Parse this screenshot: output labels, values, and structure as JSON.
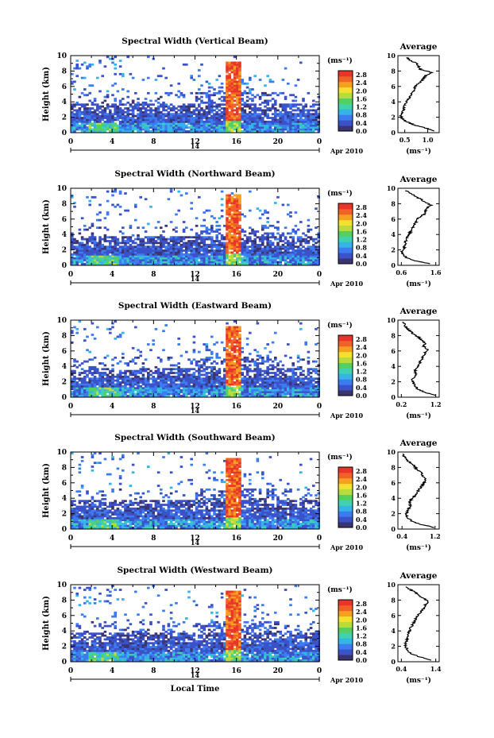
{
  "chart_data": [
    {
      "type": "heatmap",
      "title": "Spectral Width (Vertical Beam)",
      "ylabel": "Height (km)",
      "yticks": [
        "0",
        "2",
        "4",
        "6",
        "8",
        "10"
      ],
      "xticks": [
        "0",
        "4",
        "8",
        "12",
        "16",
        "20",
        "0"
      ],
      "date_tick": "14",
      "date_label": "Apr 2010",
      "ylim": [
        0,
        10
      ],
      "xlim": [
        0,
        24
      ],
      "colorbar": {
        "unit": "(ms⁻¹)",
        "ticks": [
          "0.0",
          "0.4",
          "0.8",
          "1.2",
          "1.6",
          "2.0",
          "2.4",
          "2.8"
        ],
        "range": [
          0,
          3.0
        ]
      },
      "profile": {
        "title": "Average",
        "xlabel": "(ms⁻¹)",
        "xticks": [
          "0.5",
          "1.0"
        ],
        "xlim": [
          0.35,
          1.25
        ],
        "heights": [
          0.2,
          0.6,
          1.0,
          1.4,
          1.8,
          2.2,
          2.6,
          3.0,
          3.4,
          3.8,
          4.2,
          4.6,
          5.0,
          5.4,
          5.8,
          6.2,
          6.6,
          7.0,
          7.4,
          7.8,
          8.2,
          8.6,
          9.0,
          9.4,
          9.8
        ],
        "values": [
          1.15,
          0.95,
          0.7,
          0.55,
          0.45,
          0.42,
          0.45,
          0.48,
          0.47,
          0.52,
          0.55,
          0.62,
          0.65,
          0.7,
          0.72,
          0.75,
          0.85,
          0.9,
          0.95,
          1.1,
          0.85,
          0.8,
          0.75,
          0.6,
          0.55
        ]
      }
    },
    {
      "type": "heatmap",
      "title": "Spectral Width (Northward Beam)",
      "ylabel": "Height (km)",
      "yticks": [
        "0",
        "2",
        "4",
        "6",
        "8",
        "10"
      ],
      "xticks": [
        "0",
        "4",
        "8",
        "12",
        "16",
        "20",
        "0"
      ],
      "date_tick": "14",
      "date_label": "Apr 2010",
      "ylim": [
        0,
        10
      ],
      "xlim": [
        0,
        24
      ],
      "colorbar": {
        "unit": "(ms⁻¹)",
        "ticks": [
          "0.0",
          "0.4",
          "0.8",
          "1.2",
          "1.6",
          "2.0",
          "2.4",
          "2.8"
        ],
        "range": [
          0,
          3.0
        ]
      },
      "profile": {
        "title": "Average",
        "xlabel": "(ms⁻¹)",
        "xticks": [
          "0.6",
          "1.6"
        ],
        "xlim": [
          0.5,
          1.7
        ],
        "heights": [
          0.2,
          0.6,
          1.0,
          1.4,
          1.8,
          2.2,
          2.6,
          3.0,
          3.4,
          3.8,
          4.2,
          4.6,
          5.0,
          5.4,
          5.8,
          6.2,
          6.6,
          7.0,
          7.4,
          7.8,
          8.2,
          8.6,
          9.0,
          9.4,
          9.8
        ],
        "values": [
          1.45,
          1.0,
          0.75,
          0.65,
          0.62,
          0.68,
          0.7,
          0.72,
          0.75,
          0.8,
          0.85,
          0.9,
          0.95,
          1.0,
          1.05,
          1.1,
          1.25,
          1.3,
          1.35,
          1.45,
          1.3,
          1.15,
          1.0,
          0.85,
          0.7
        ]
      }
    },
    {
      "type": "heatmap",
      "title": "Spectral Width (Eastward Beam)",
      "ylabel": "Height (km)",
      "yticks": [
        "0",
        "2",
        "4",
        "6",
        "8",
        "10"
      ],
      "xticks": [
        "0",
        "4",
        "8",
        "12",
        "16",
        "20",
        "0"
      ],
      "date_tick": "14",
      "date_label": "Apr 2010",
      "ylim": [
        0,
        10
      ],
      "xlim": [
        0,
        24
      ],
      "colorbar": {
        "unit": "(ms⁻¹)",
        "ticks": [
          "0.0",
          "0.4",
          "0.8",
          "1.2",
          "1.6",
          "2.0",
          "2.4",
          "2.8"
        ],
        "range": [
          0,
          3.0
        ]
      },
      "profile": {
        "title": "Average",
        "xlabel": "(ms⁻¹)",
        "xticks": [
          "0.2",
          "1.2"
        ],
        "xlim": [
          0.1,
          1.3
        ],
        "heights": [
          0.2,
          0.6,
          1.0,
          1.4,
          1.8,
          2.2,
          2.6,
          3.0,
          3.4,
          3.8,
          4.2,
          4.6,
          5.0,
          5.4,
          5.8,
          6.2,
          6.6,
          7.0,
          7.4,
          7.8,
          8.2,
          8.6,
          9.0,
          9.4,
          9.8
        ],
        "values": [
          1.2,
          0.9,
          0.7,
          0.6,
          0.55,
          0.5,
          0.58,
          0.62,
          0.6,
          0.65,
          0.7,
          0.75,
          0.8,
          0.85,
          0.9,
          0.95,
          0.85,
          0.9,
          0.8,
          0.7,
          0.55,
          0.45,
          0.35,
          0.3,
          0.25
        ]
      }
    },
    {
      "type": "heatmap",
      "title": "Spectral Width (Southward Beam)",
      "ylabel": "Height (km)",
      "yticks": [
        "0",
        "2",
        "4",
        "6",
        "8",
        "10"
      ],
      "xticks": [
        "0",
        "4",
        "8",
        "12",
        "16",
        "20",
        "0"
      ],
      "date_tick": "14",
      "date_label": "Apr 2010",
      "ylim": [
        0,
        10
      ],
      "xlim": [
        0,
        24
      ],
      "colorbar": {
        "unit": "(ms⁻¹)",
        "ticks": [
          "0.0",
          "0.4",
          "0.8",
          "1.2",
          "1.6",
          "2.0",
          "2.4",
          "2.8"
        ],
        "range": [
          0,
          3.0
        ]
      },
      "profile": {
        "title": "Average",
        "xlabel": "(ms⁻¹)",
        "xticks": [
          "0.4",
          "1.2"
        ],
        "xlim": [
          0.3,
          1.3
        ],
        "heights": [
          0.2,
          0.6,
          1.0,
          1.4,
          1.8,
          2.2,
          2.6,
          3.0,
          3.4,
          3.8,
          4.2,
          4.6,
          5.0,
          5.4,
          5.8,
          6.2,
          6.6,
          7.0,
          7.4,
          7.8,
          8.2,
          8.6,
          9.0,
          9.4,
          9.8
        ],
        "values": [
          1.2,
          0.85,
          0.65,
          0.55,
          0.5,
          0.52,
          0.55,
          0.6,
          0.58,
          0.62,
          0.7,
          0.75,
          0.8,
          0.85,
          0.9,
          0.95,
          0.95,
          0.9,
          0.85,
          0.75,
          0.7,
          0.6,
          0.5,
          0.45,
          0.4
        ]
      }
    },
    {
      "type": "heatmap",
      "title": "Spectral Width (Westward Beam)",
      "ylabel": "Height (km)",
      "xlabel": "Local Time",
      "yticks": [
        "0",
        "2",
        "4",
        "6",
        "8",
        "10"
      ],
      "xticks": [
        "0",
        "4",
        "8",
        "12",
        "16",
        "20",
        "0"
      ],
      "date_tick": "14",
      "date_label": "Apr 2010",
      "ylim": [
        0,
        10
      ],
      "xlim": [
        0,
        24
      ],
      "colorbar": {
        "unit": "(ms⁻¹)",
        "ticks": [
          "0.0",
          "0.4",
          "0.8",
          "1.2",
          "1.6",
          "2.0",
          "2.4",
          "2.8"
        ],
        "range": [
          0,
          3.0
        ]
      },
      "profile": {
        "title": "Average",
        "xlabel": "(ms⁻¹)",
        "xticks": [
          "0.4",
          "1.4"
        ],
        "xlim": [
          0.3,
          1.5
        ],
        "heights": [
          0.2,
          0.6,
          1.0,
          1.4,
          1.8,
          2.2,
          2.6,
          3.0,
          3.4,
          3.8,
          4.2,
          4.6,
          5.0,
          5.4,
          5.8,
          6.2,
          6.6,
          7.0,
          7.4,
          7.8,
          8.2,
          8.6,
          9.0,
          9.4,
          9.8
        ],
        "values": [
          1.3,
          0.95,
          0.7,
          0.6,
          0.55,
          0.5,
          0.55,
          0.58,
          0.6,
          0.62,
          0.65,
          0.7,
          0.75,
          0.8,
          0.85,
          0.9,
          1.0,
          1.05,
          1.1,
          1.2,
          1.05,
          0.9,
          0.8,
          0.65,
          0.5
        ]
      }
    }
  ]
}
